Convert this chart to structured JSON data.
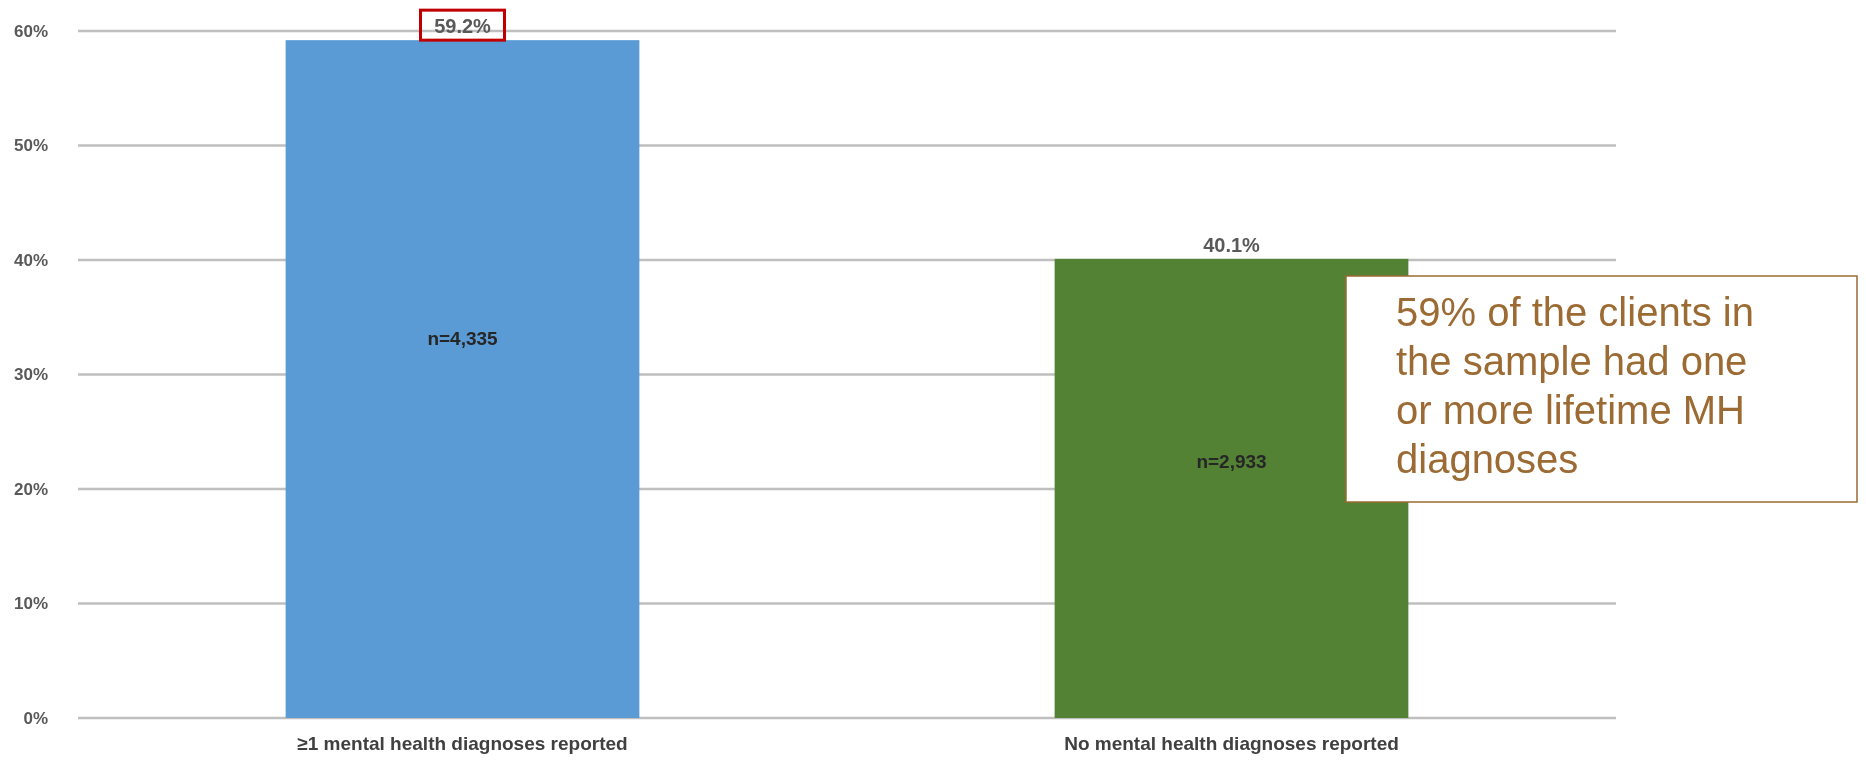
{
  "chart_data": {
    "type": "bar",
    "categories": [
      "≥1 mental health diagnoses reported",
      "No mental health diagnoses reported"
    ],
    "values": [
      59.2,
      40.1
    ],
    "colors": [
      "#5b9bd5",
      "#548235"
    ],
    "ylim": [
      0,
      60
    ],
    "yticks": [
      {
        "value": 0,
        "label": "0%"
      },
      {
        "value": 10,
        "label": "10%"
      },
      {
        "value": 20,
        "label": "20%"
      },
      {
        "value": 30,
        "label": "30%"
      },
      {
        "value": 40,
        "label": "40%"
      },
      {
        "value": 50,
        "label": "50%"
      },
      {
        "value": 60,
        "label": "60%"
      }
    ],
    "grid": "y",
    "value_labels": [
      "59.2%",
      "40.1%"
    ],
    "annotations": [
      "n=4,335",
      "n=2,933",
      "59% of the clients in the sample had one or more lifetime MH diagnoses"
    ]
  }
}
